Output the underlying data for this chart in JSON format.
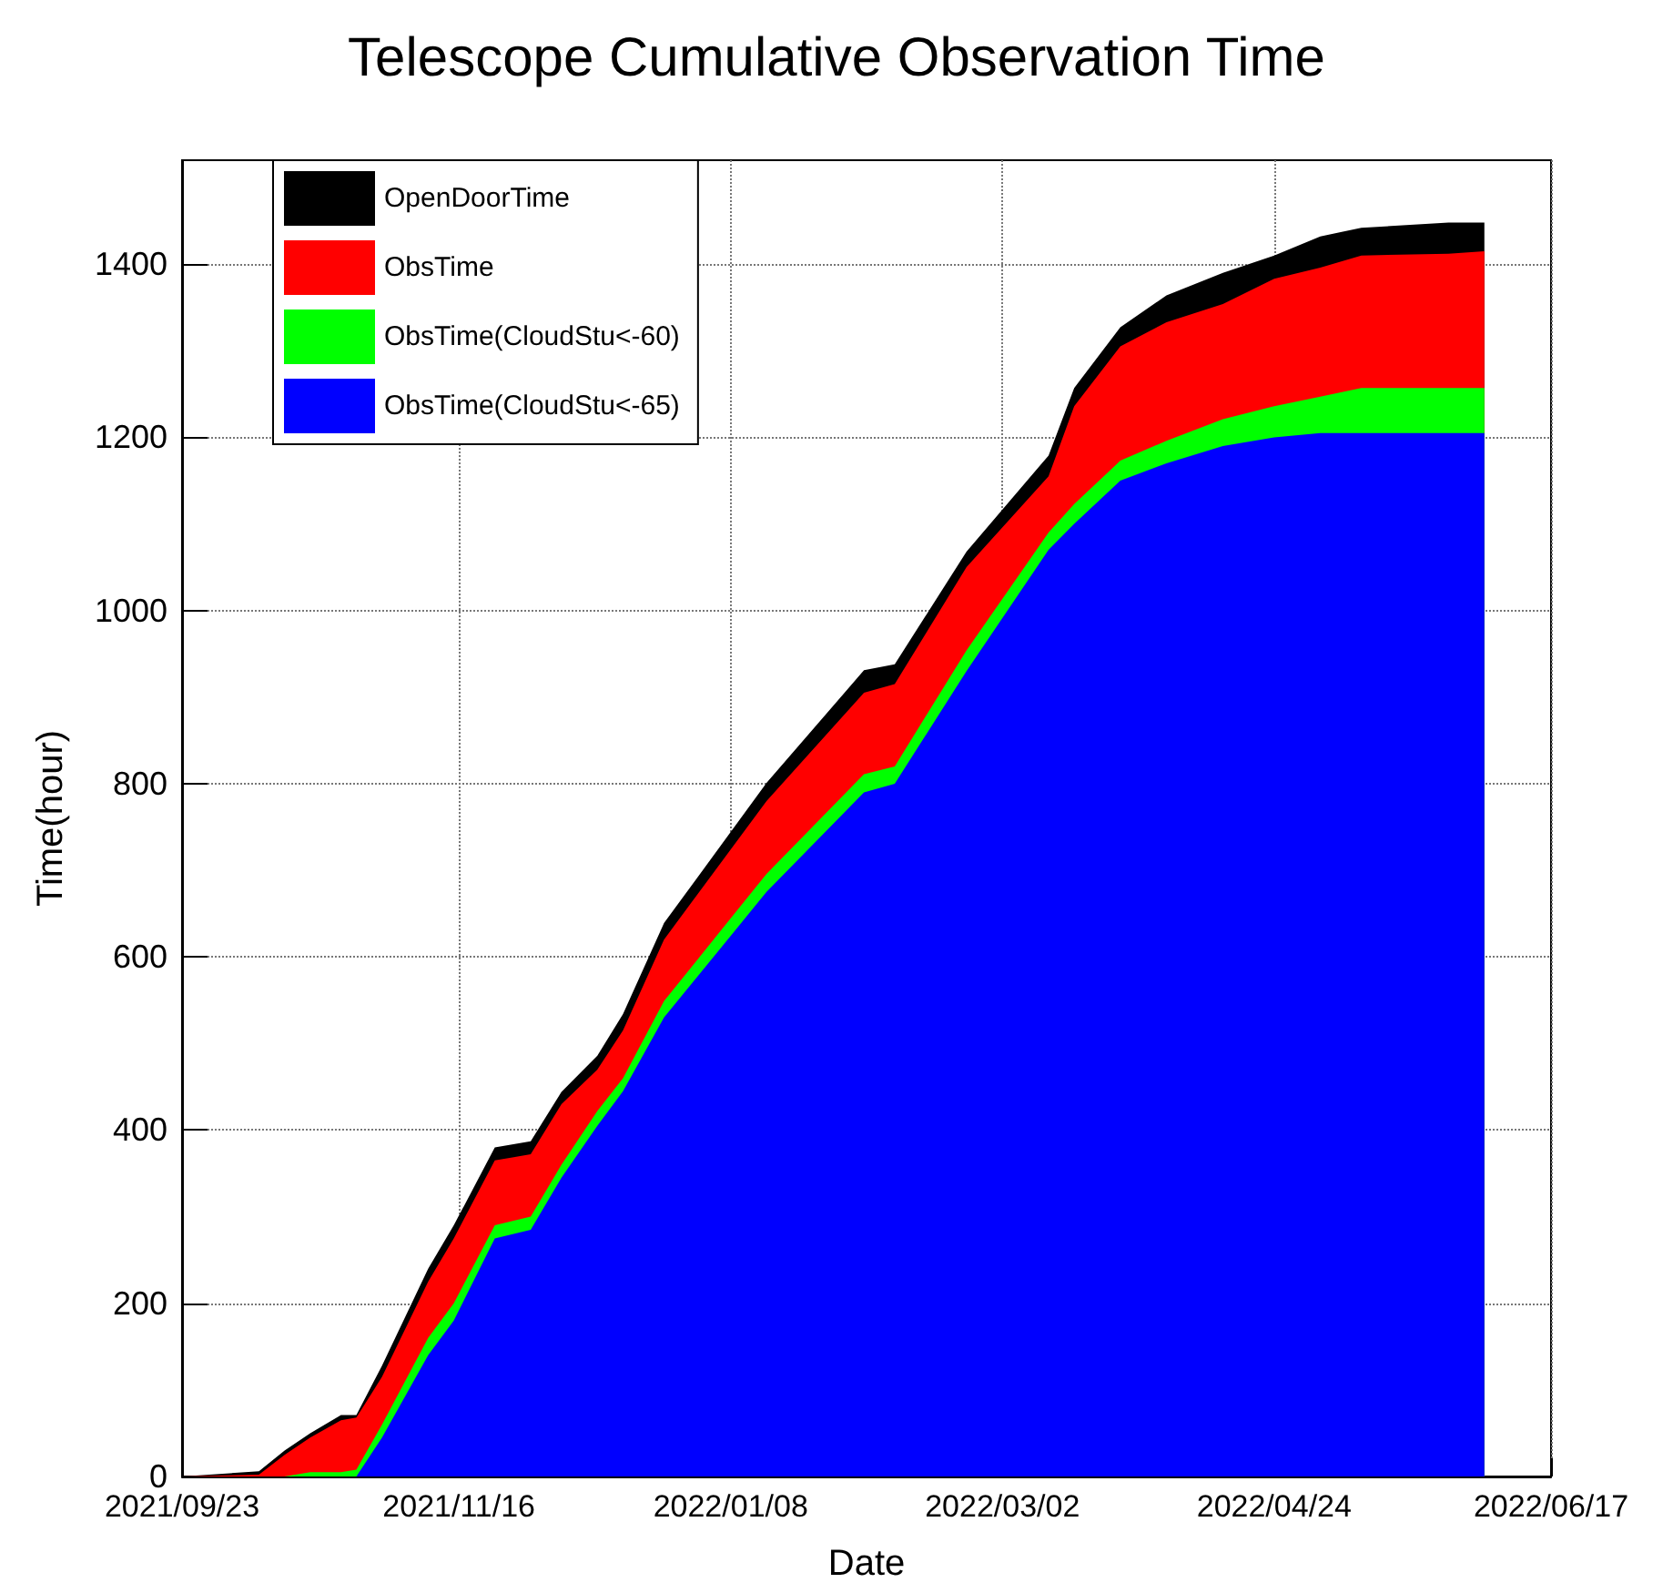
{
  "chart_data": {
    "type": "area",
    "title": "Telescope Cumulative Observation Time",
    "xlabel": "Date",
    "ylabel": "Time(hour)",
    "x": [
      "2021-09-23",
      "2021-10-08",
      "2021-10-13",
      "2021-10-18",
      "2021-10-24",
      "2021-10-27",
      "2021-11-01",
      "2021-11-10",
      "2021-11-15",
      "2021-11-23",
      "2021-11-30",
      "2021-12-06",
      "2021-12-13",
      "2021-12-18",
      "2021-12-26",
      "2022-01-15",
      "2022-02-03",
      "2022-02-09",
      "2022-02-23",
      "2022-03-11",
      "2022-03-16",
      "2022-03-25",
      "2022-04-03",
      "2022-04-14",
      "2022-04-24",
      "2022-05-03",
      "2022-05-11",
      "2022-05-28",
      "2022-06-04"
    ],
    "series": [
      {
        "name": "OpenDoorTime",
        "color": "#000000",
        "values": [
          0,
          6,
          30,
          50,
          71,
          71,
          128,
          240,
          290,
          380,
          387,
          444,
          486,
          534,
          639,
          801,
          931,
          938,
          1068,
          1179,
          1257,
          1327,
          1364,
          1390,
          1410,
          1432,
          1442,
          1448,
          1448
        ]
      },
      {
        "name": "ObsTime",
        "color": "#ff0000",
        "values": [
          0,
          2,
          25,
          45,
          65,
          68,
          115,
          225,
          275,
          365,
          372,
          430,
          470,
          515,
          620,
          780,
          905,
          915,
          1050,
          1155,
          1236,
          1305,
          1333,
          1354,
          1383,
          1396,
          1410,
          1412,
          1415
        ]
      },
      {
        "name": "ObsTime(CloudStu<-60)",
        "color": "#00ff00",
        "values": [
          0,
          0,
          0,
          5,
          5,
          8,
          60,
          160,
          200,
          290,
          300,
          360,
          422,
          460,
          549,
          696,
          811,
          820,
          954,
          1090,
          1123,
          1173,
          1196,
          1221,
          1236,
          1247,
          1257,
          1257,
          1257
        ]
      },
      {
        "name": "ObsTime(CloudStu<-65)",
        "color": "#0000ff",
        "values": [
          0,
          0,
          0,
          0,
          0,
          0,
          45,
          140,
          180,
          275,
          285,
          345,
          405,
          445,
          530,
          675,
          790,
          800,
          930,
          1070,
          1100,
          1150,
          1170,
          1190,
          1200,
          1205,
          1205,
          1205,
          1205
        ]
      }
    ],
    "xlim": [
      "2021-09-23",
      "2022-06-17"
    ],
    "xticks": [
      {
        "value": "2021-09-23",
        "label": "2021/09/23"
      },
      {
        "value": "2021-11-16",
        "label": "2021/11/16"
      },
      {
        "value": "2022-01-08",
        "label": "2022/01/08"
      },
      {
        "value": "2022-03-02",
        "label": "2022/03/02"
      },
      {
        "value": "2022-04-24",
        "label": "2022/04/24"
      },
      {
        "value": "2022-06-17",
        "label": "2022/06/17"
      }
    ],
    "ylim": [
      0,
      1520
    ],
    "yticks": [
      0,
      200,
      400,
      600,
      800,
      1000,
      1200,
      1400
    ],
    "grid": true,
    "legend": "top left"
  }
}
